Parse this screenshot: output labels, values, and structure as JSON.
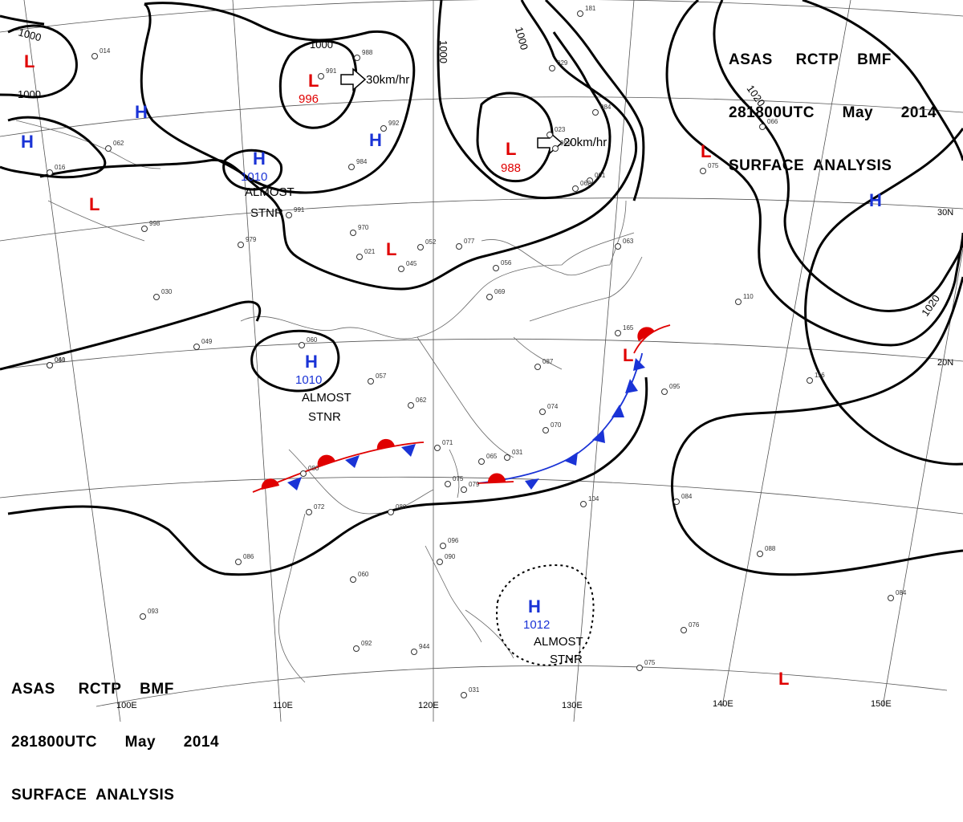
{
  "header": {
    "line1": "ASAS     RCTP    BMF",
    "line2": "281800UTC      May      2014",
    "line3": "SURFACE  ANALYSIS"
  },
  "colors": {
    "low": "#e00000",
    "high": "#1a33d6",
    "warm_front": "#e00000",
    "cold_front": "#1a33d6",
    "isobar": "#000000"
  },
  "isobar_labels": [
    "1000",
    "1000",
    "1000",
    "1000",
    "1000",
    "1020",
    "1020"
  ],
  "pressure_centers": [
    {
      "type": "L",
      "value": ""
    },
    {
      "type": "L",
      "value": "996"
    },
    {
      "type": "L",
      "value": "988"
    },
    {
      "type": "L",
      "value": ""
    },
    {
      "type": "L",
      "value": ""
    },
    {
      "type": "L",
      "value": ""
    },
    {
      "type": "L",
      "value": ""
    },
    {
      "type": "L",
      "value": ""
    },
    {
      "type": "H",
      "value": ""
    },
    {
      "type": "H",
      "value": ""
    },
    {
      "type": "H",
      "value": "1010"
    },
    {
      "type": "H",
      "value": ""
    },
    {
      "type": "H",
      "value": ""
    },
    {
      "type": "H",
      "value": "1010"
    },
    {
      "type": "H",
      "value": "1012"
    }
  ],
  "movement_labels": [
    "30km/hr",
    "20km/hr"
  ],
  "notes": [
    {
      "line1": "ALMOST",
      "line2": "STNR"
    },
    {
      "line1": "ALMOST",
      "line2": "STNR"
    },
    {
      "line1": "ALMOST",
      "line2": "STNR"
    }
  ],
  "longitude_labels": [
    "100E",
    "110E",
    "120E",
    "130E",
    "140E",
    "150E"
  ],
  "latitude_labels": [
    "30N",
    "20N"
  ],
  "station_samples": [
    "014",
    "062",
    "016",
    "998",
    "979",
    "030",
    "049",
    "060",
    "991",
    "988",
    "992",
    "984",
    "991",
    "970",
    "021",
    "045",
    "052",
    "077",
    "056",
    "069",
    "060",
    "057",
    "062",
    "071",
    "080",
    "072",
    "080",
    "075",
    "079",
    "086",
    "060",
    "096",
    "090",
    "093",
    "092",
    "944",
    "031",
    "023",
    "999",
    "001",
    "062",
    "084",
    "075",
    "110",
    "165",
    "095",
    "116",
    "104",
    "084",
    "088",
    "084",
    "076",
    "075",
    "074",
    "070",
    "065",
    "031",
    "041",
    "029",
    "063",
    "087",
    "066",
    "181"
  ]
}
